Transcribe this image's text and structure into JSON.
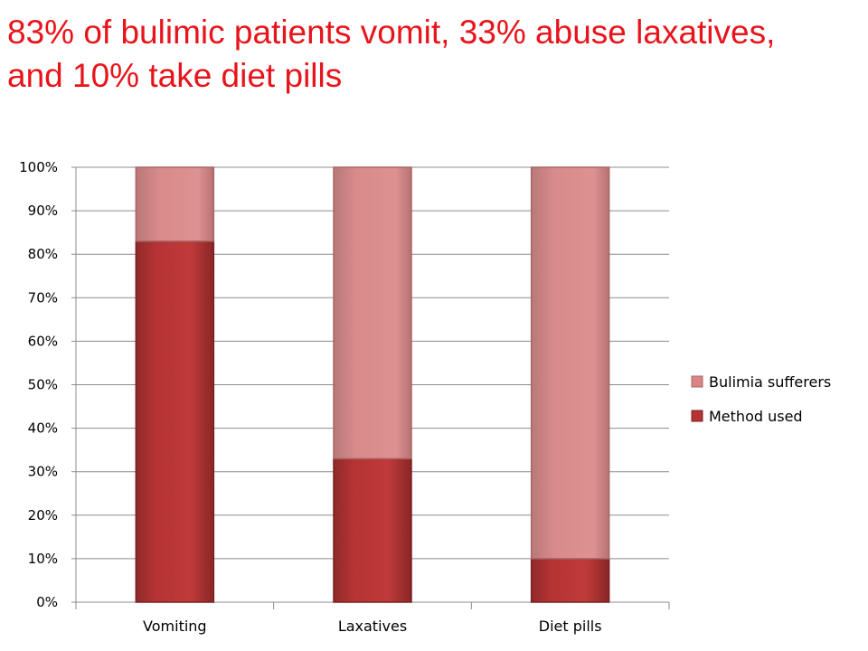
{
  "title": "83% of bulimic patients vomit, 33% abuse laxatives, and 10% take diet pills",
  "chart_data": {
    "type": "bar",
    "stacked": true,
    "percent_stacked": true,
    "categories": [
      "Vomiting",
      "Laxatives",
      "Diet pills"
    ],
    "series": [
      {
        "name": "Method used",
        "values": [
          83,
          33,
          10
        ],
        "color": "#b83232"
      },
      {
        "name": "Bulimia sufferers",
        "values": [
          17,
          67,
          90
        ],
        "color": "#d98585"
      }
    ],
    "ylim": [
      0,
      100
    ],
    "yticks": [
      "0%",
      "10%",
      "20%",
      "30%",
      "40%",
      "50%",
      "60%",
      "70%",
      "80%",
      "90%",
      "100%"
    ],
    "grid": true,
    "legend_position": "right",
    "legend_order": [
      "Bulimia sufferers",
      "Method used"
    ]
  }
}
